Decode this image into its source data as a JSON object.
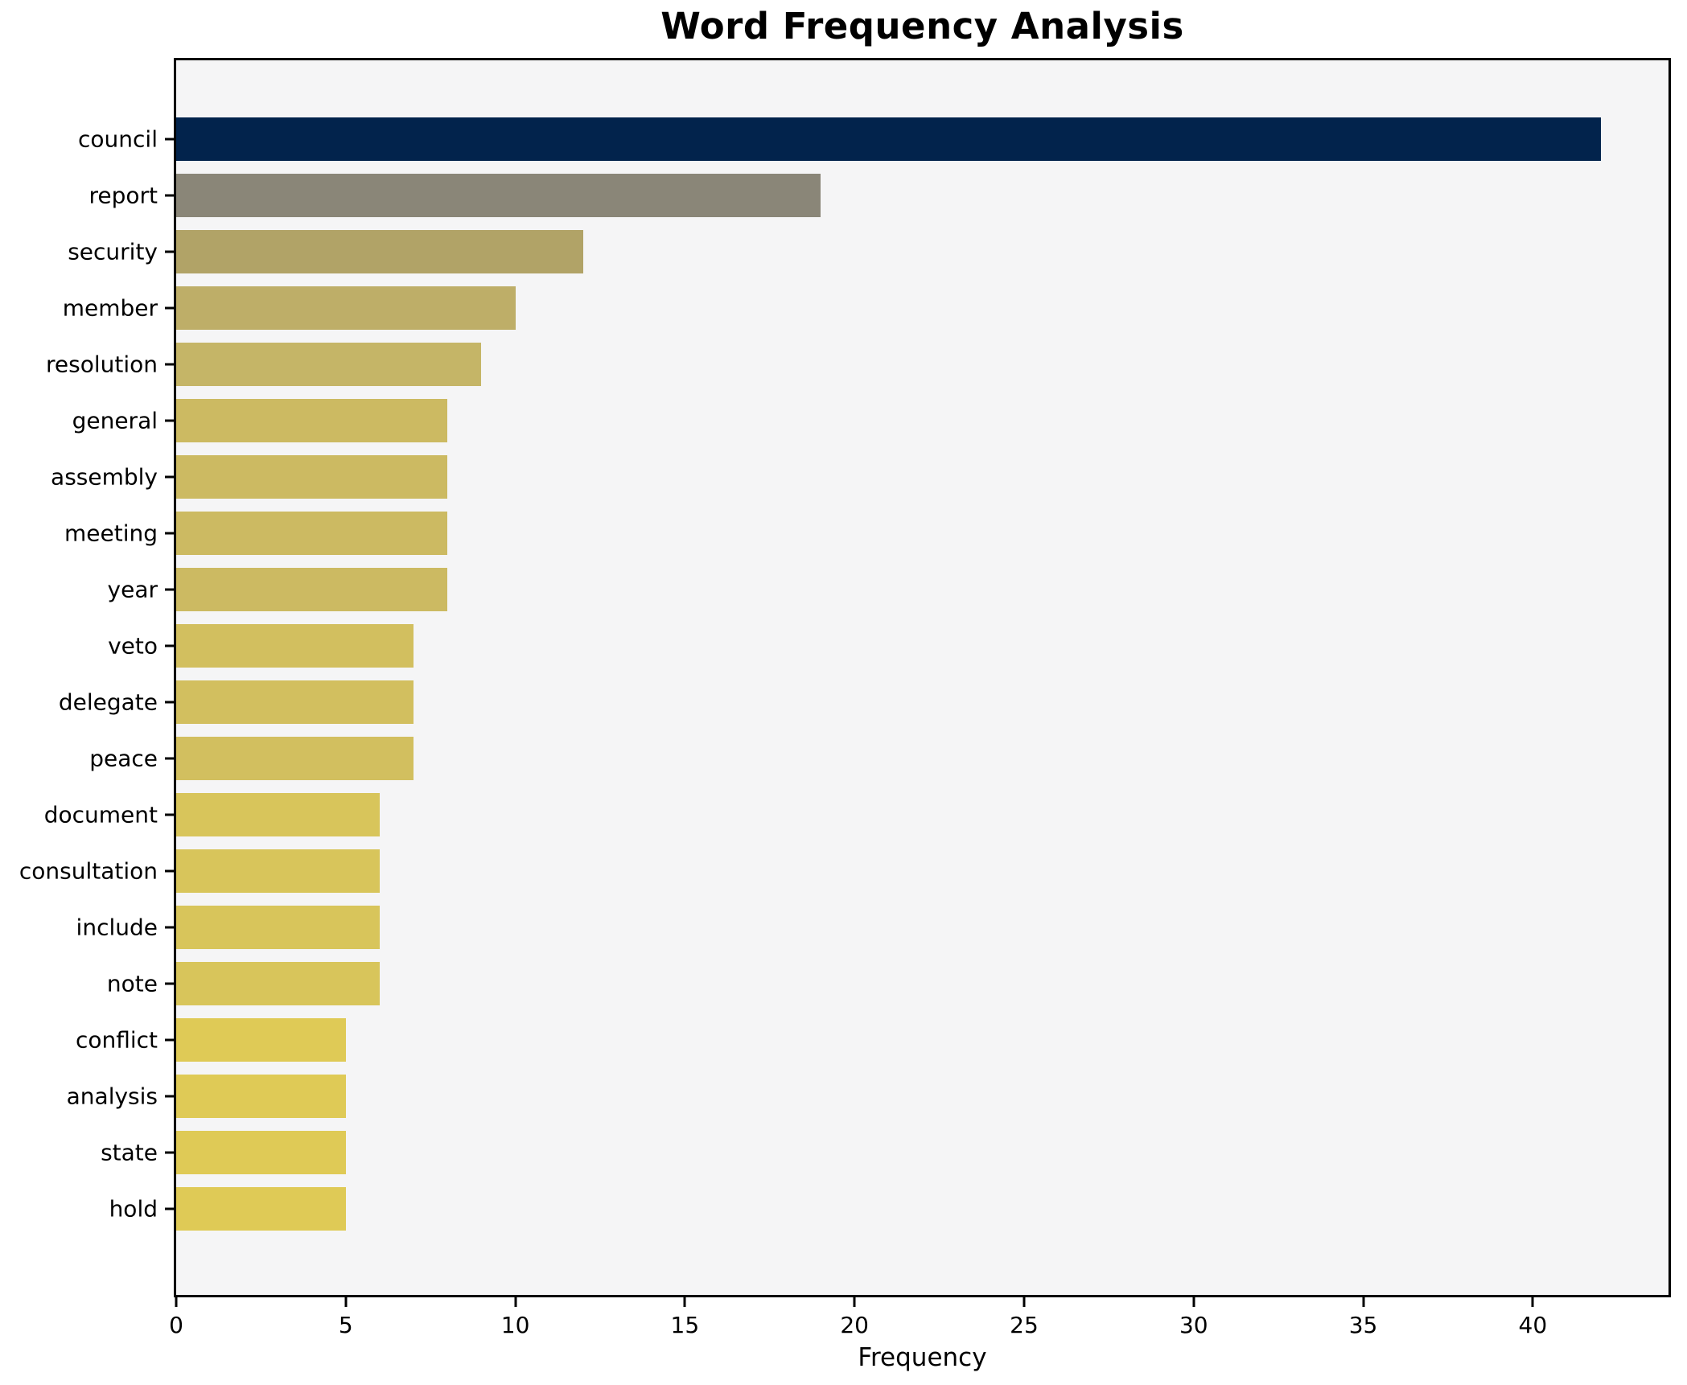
{
  "chart_data": {
    "type": "bar",
    "orientation": "horizontal",
    "title": "Word Frequency Analysis",
    "xlabel": "Frequency",
    "ylabel": "",
    "categories": [
      "council",
      "report",
      "security",
      "member",
      "resolution",
      "general",
      "assembly",
      "meeting",
      "year",
      "veto",
      "delegate",
      "peace",
      "document",
      "consultation",
      "include",
      "note",
      "conflict",
      "analysis",
      "state",
      "hold"
    ],
    "values": [
      42,
      19,
      12,
      10,
      9,
      8,
      8,
      8,
      8,
      7,
      7,
      7,
      6,
      6,
      6,
      6,
      5,
      5,
      5,
      5
    ],
    "bar_colors": [
      "#02234c",
      "#8a8678",
      "#b1a367",
      "#beae68",
      "#c5b567",
      "#ccba62",
      "#ccba62",
      "#ccba62",
      "#ccba62",
      "#d2bf5f",
      "#d2bf5f",
      "#d2bf5f",
      "#d8c55b",
      "#d8c55b",
      "#d8c55b",
      "#d8c55b",
      "#dfca56",
      "#dfca56",
      "#dfca56",
      "#dfca56"
    ],
    "xlim": [
      0,
      44
    ],
    "xticks": [
      0,
      5,
      10,
      15,
      20,
      25,
      30,
      35,
      40
    ],
    "grid": false,
    "legend": null,
    "plot_bg": "#f5f5f6",
    "fig_bg": "#ffffff",
    "spine_color": "#000000"
  }
}
